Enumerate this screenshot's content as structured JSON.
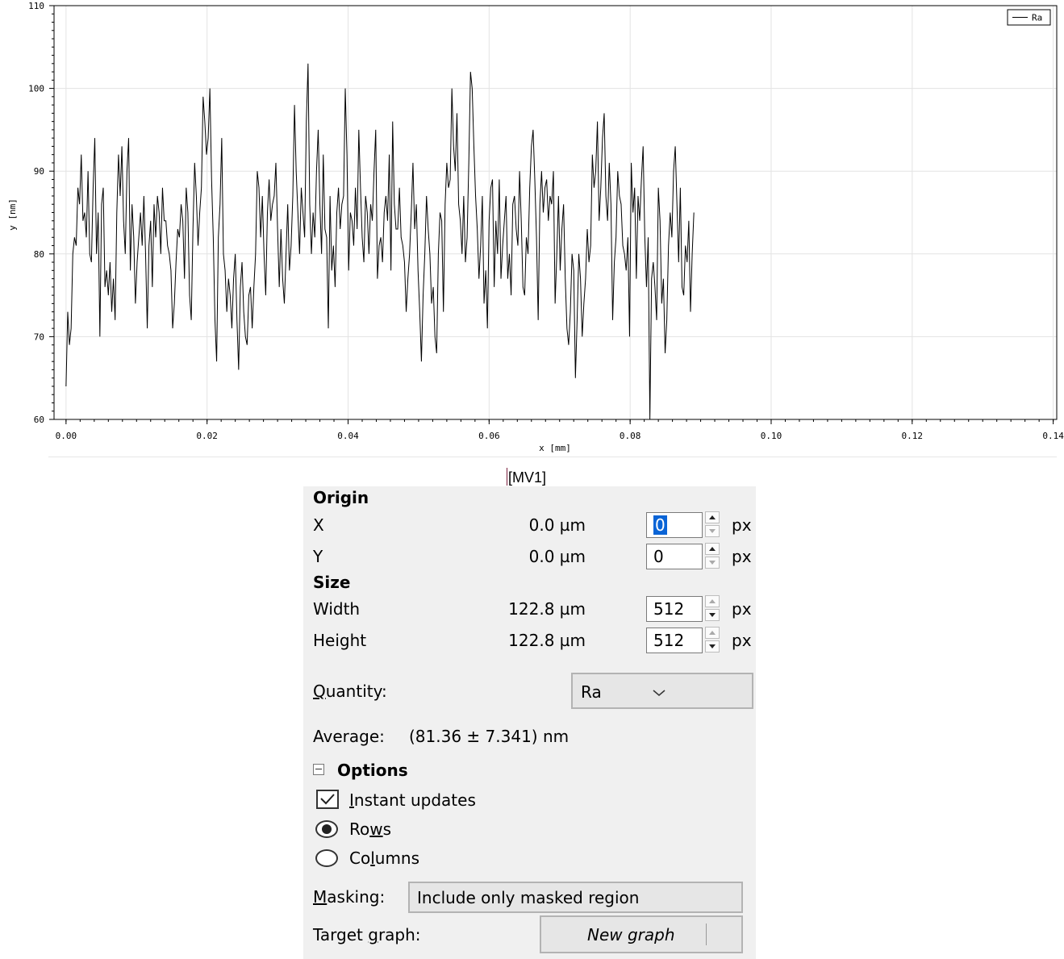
{
  "chart_data": {
    "type": "line",
    "xlabel": "x [mm]",
    "ylabel": "y [nm]",
    "xlim": [
      -0.0017,
      0.1405
    ],
    "ylim": [
      60,
      110
    ],
    "x_ticks": [
      "0.00",
      "0.02",
      "0.04",
      "0.06",
      "0.08",
      "0.10",
      "0.12",
      "0.14"
    ],
    "y_ticks": [
      "60",
      "70",
      "80",
      "90",
      "100",
      "110"
    ],
    "x_tick_values": [
      0,
      0.02,
      0.04,
      0.06,
      0.08,
      0.1,
      0.12,
      0.14
    ],
    "y_tick_values": [
      60,
      70,
      80,
      90,
      100,
      110
    ],
    "grid": true,
    "legend_position": "top-right",
    "series": [
      {
        "name": "Ra",
        "color": "#000000",
        "x_start": 0.0,
        "x_step": 0.00024,
        "values": [
          64,
          73,
          69,
          71,
          80,
          82,
          81,
          88,
          86,
          92,
          84,
          85,
          82,
          90,
          80,
          79,
          88,
          94,
          80,
          85,
          70,
          86,
          88,
          76,
          78,
          75,
          79,
          73,
          77,
          72,
          85,
          92,
          87,
          93,
          84,
          80,
          90,
          94,
          78,
          86,
          82,
          74,
          79,
          82,
          85,
          81,
          87,
          80,
          71,
          81,
          84,
          76,
          86,
          82,
          87,
          85,
          80,
          88,
          84,
          84,
          81,
          80,
          78,
          71,
          74,
          79,
          83,
          82,
          86,
          84,
          77,
          88,
          85,
          75,
          72,
          83,
          91,
          87,
          81,
          85,
          88,
          99,
          96,
          92,
          94,
          100,
          89,
          82,
          72,
          67,
          82,
          86,
          94,
          80,
          78,
          73,
          77,
          75,
          71,
          77,
          80,
          72,
          66,
          76,
          79,
          73,
          70,
          69,
          75,
          76,
          71,
          76,
          80,
          90,
          88,
          82,
          87,
          80,
          75,
          85,
          89,
          84,
          86,
          87,
          91,
          83,
          76,
          83,
          77,
          74,
          80,
          86,
          78,
          81,
          87,
          98,
          90,
          85,
          80,
          88,
          85,
          82,
          96,
          103,
          86,
          80,
          85,
          82,
          90,
          95,
          86,
          80,
          92,
          83,
          82,
          71,
          87,
          78,
          81,
          76,
          85,
          88,
          83,
          86,
          87,
          100,
          92,
          78,
          85,
          84,
          81,
          88,
          83,
          95,
          88,
          82,
          79,
          87,
          85,
          80,
          86,
          84,
          90,
          95,
          77,
          81,
          82,
          79,
          85,
          87,
          84,
          92,
          78,
          96,
          86,
          83,
          83,
          88,
          82,
          81,
          79,
          73,
          77,
          80,
          85,
          91,
          83,
          86,
          78,
          73,
          67,
          75,
          80,
          87,
          83,
          80,
          74,
          76,
          70,
          68,
          80,
          85,
          84,
          73,
          86,
          91,
          88,
          89,
          100,
          93,
          90,
          97,
          86,
          84,
          80,
          87,
          79,
          82,
          91,
          102,
          100,
          93,
          87,
          83,
          77,
          81,
          87,
          74,
          78,
          71,
          84,
          88,
          89,
          76,
          84,
          80,
          89,
          77,
          81,
          84,
          87,
          77,
          80,
          75,
          86,
          87,
          83,
          81,
          90,
          84,
          76,
          75,
          82,
          80,
          88,
          93,
          95,
          89,
          82,
          72,
          86,
          90,
          85,
          88,
          89,
          84,
          87,
          86,
          90,
          74,
          80,
          87,
          78,
          83,
          86,
          77,
          71,
          69,
          73,
          80,
          78,
          65,
          72,
          80,
          77,
          70,
          74,
          77,
          83,
          79,
          81,
          92,
          88,
          90,
          96,
          84,
          88,
          94,
          97,
          87,
          84,
          91,
          86,
          72,
          79,
          82,
          90,
          87,
          86,
          81,
          80,
          78,
          82,
          70,
          91,
          85,
          88,
          77,
          87,
          84,
          89,
          93,
          82,
          76,
          82,
          60,
          77,
          79,
          76,
          72,
          88,
          84,
          74,
          77,
          68,
          72,
          81,
          85,
          82,
          90,
          93,
          86,
          79,
          88,
          76,
          75,
          81,
          79,
          84,
          73,
          80,
          85
        ]
      }
    ]
  },
  "divider_tag": "[MV1]",
  "panel": {
    "origin_title": "Origin",
    "size_title": "Size",
    "x_label": "X",
    "x_value": "0.0 µm",
    "x_input": "0",
    "y_label": "Y",
    "y_value": "0.0 µm",
    "y_input": "0",
    "width_label": "Width",
    "width_value": "122.8 µm",
    "width_input": "512",
    "height_label": "Height",
    "height_value": "122.8 µm",
    "height_input": "512",
    "unit": "px",
    "quantity_label_pre": "",
    "quantity_label_u": "Q",
    "quantity_label_post": "uantity:",
    "quantity_value": "Ra",
    "average_label": "Average:",
    "average_value": "(81.36 ± 7.341) nm",
    "options_title": "Options",
    "instant_pre": "",
    "instant_u": "I",
    "instant_post": "nstant updates",
    "instant_checked": true,
    "rows_pre": "Ro",
    "rows_u": "w",
    "rows_post": "s",
    "columns_pre": "Co",
    "columns_u": "l",
    "columns_post": "umns",
    "selected_mode": "Rows",
    "masking_u": "M",
    "masking_post": "asking:",
    "masking_value": "Include only masked region",
    "target_pre": "Target ",
    "target_u": "g",
    "target_post": "raph:",
    "target_value": "New graph"
  }
}
